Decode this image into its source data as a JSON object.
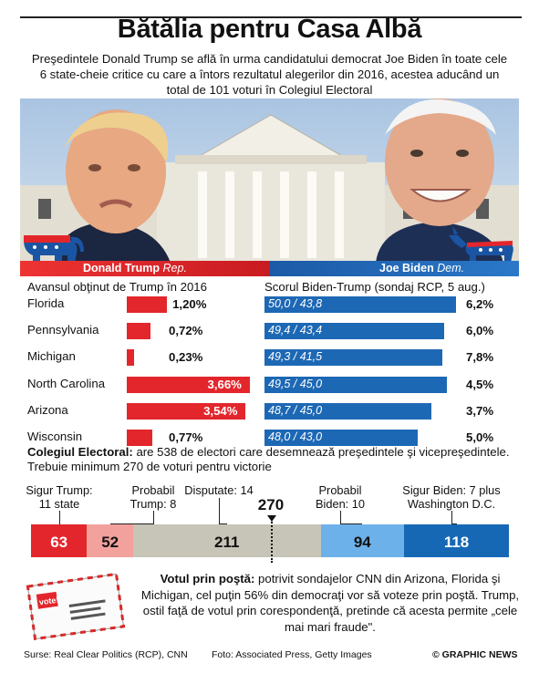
{
  "header": {
    "title": "Bătălia pentru Casa Albă",
    "subtitle": "Preşedintele Donald Trump se află în urma candidatului democrat Joe Biden în toate cele 6 state-cheie critice cu care a întors rezultatul alegerilor din 2016, acestea aducând un total de 101 voturi în Colegiul Electoral"
  },
  "candidates": {
    "trump_name": "Donald Trump",
    "trump_party": "Rep.",
    "biden_name": "Joe Biden",
    "biden_party": "Dem."
  },
  "chart_data": [
    {
      "type": "bar",
      "title": "Avansul obţinut de Trump în 2016",
      "categories": [
        "Florida",
        "Pennsylvania",
        "Michigan",
        "North Carolina",
        "Arizona",
        "Wisconsin"
      ],
      "values": [
        1.2,
        0.72,
        0.23,
        3.66,
        3.54,
        0.77
      ],
      "value_labels": [
        "1,20%",
        "0,72%",
        "0,23%",
        "3,66%",
        "3,54%",
        "0,77%"
      ],
      "color": "#e3262c"
    },
    {
      "type": "bar",
      "title": "Scorul Biden-Trump (sondaj RCP, 5 aug.)",
      "categories": [
        "Florida",
        "Pennsylvania",
        "Michigan",
        "North Carolina",
        "Arizona",
        "Wisconsin"
      ],
      "series": [
        {
          "values": [
            50.0,
            49.4,
            49.3,
            49.5,
            48.7,
            48.0
          ]
        },
        {
          "values": [
            43.8,
            43.4,
            41.5,
            45.0,
            45.0,
            43.0
          ]
        }
      ],
      "bar_labels": [
        "50,0 / 43,8",
        "49,4 / 43,4",
        "49,3 / 41,5",
        "49,5 / 45,0",
        "48,7 / 45,0",
        "48,0 / 43,0"
      ],
      "margins": [
        6.2,
        6.0,
        7.8,
        4.5,
        3.7,
        5.0
      ],
      "margin_labels": [
        "6,2%",
        "6,0%",
        "7,8%",
        "4,5%",
        "3,7%",
        "5,0%"
      ],
      "color": "#1d68b5"
    },
    {
      "type": "bar",
      "title": "Colegiul Electoral",
      "categories": [
        "Sigur Trump",
        "Probabil Trump",
        "Disputate",
        "Probabil Biden",
        "Sigur Biden"
      ],
      "values": [
        63,
        52,
        211,
        94,
        118
      ],
      "category_labels": [
        "Sigur Trump:\n11 state",
        "Probabil\nTrump: 8",
        "Disputate: 14",
        "Probabil\nBiden: 10",
        "Sigur Biden: 7 plus\nWashington D.C."
      ],
      "colors": [
        "#e3262c",
        "#f3a19c",
        "#c7c4b8",
        "#6db1ea",
        "#1668b5"
      ],
      "total": 538,
      "threshold": 270,
      "threshold_label": "270"
    }
  ],
  "electoral": {
    "heading": "Colegiul Electoral:",
    "text": " are 538 de electori care desemnează preşedintele şi vicepreşedintele. Trebuie minimum 270 de voturi pentru victorie"
  },
  "mail": {
    "heading": "Votul prin poştă:",
    "text": " potrivit sondajelor CNN din Arizona, Florida şi Michigan, cel puţin 56% din democraţi vor să voteze prin poştă. Trump, ostil faţă de votul prin corespondenţă, pretinde că acesta permite „cele mai mari fraude\".",
    "envelope_label": "vote!"
  },
  "footer": {
    "sources": "Surse: Real Clear Politics (RCP), CNN",
    "photo": "Foto: Associated Press, Getty Images",
    "credit": "© GRAPHIC NEWS"
  },
  "colors": {
    "red": "#e3262c",
    "blue": "#1d68b5"
  },
  "icons": [
    "elephant-icon",
    "donkey-icon",
    "envelope-icon"
  ]
}
